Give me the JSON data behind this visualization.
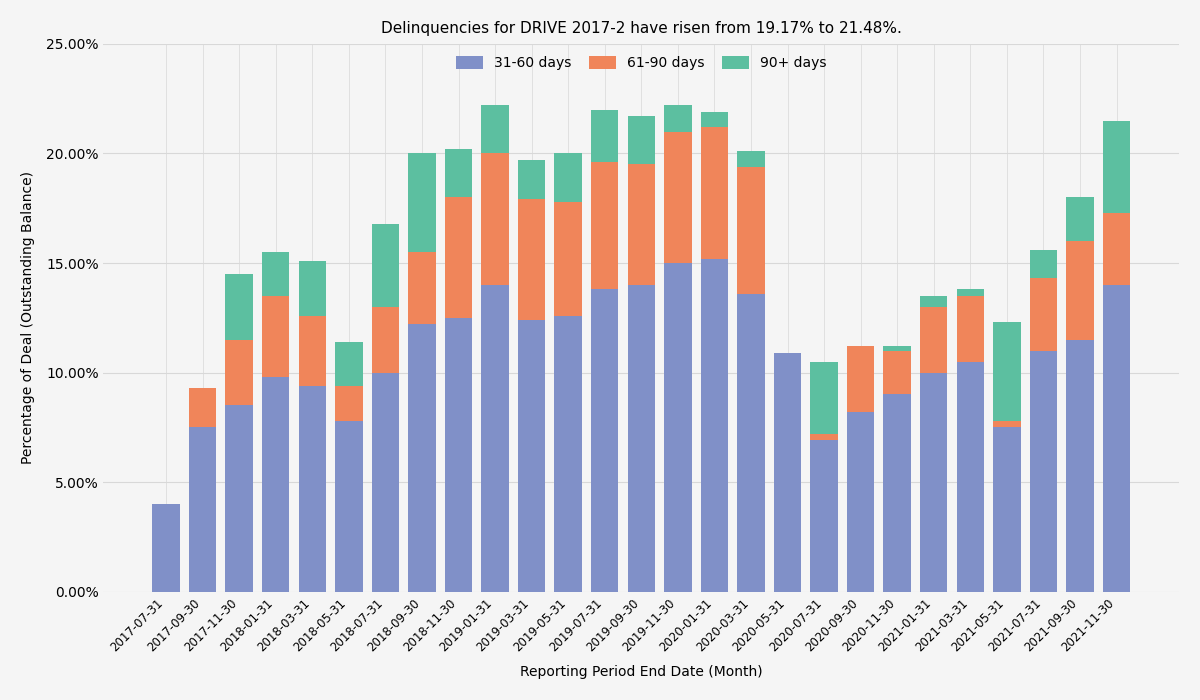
{
  "title": "Delinquencies for DRIVE 2017-2 have risen from 19.17% to 21.48%.",
  "xlabel": "Reporting Period End Date (Month)",
  "ylabel": "Percentage of Deal (Outstanding Balance)",
  "ylim": [
    0,
    0.25
  ],
  "yticks": [
    0.0,
    0.05,
    0.1,
    0.15,
    0.2,
    0.25
  ],
  "legend_labels": [
    "31-60 days",
    "61-90 days",
    "90+ days"
  ],
  "colors": [
    "#8090c8",
    "#f0855a",
    "#5cbfa0"
  ],
  "categories": [
    "2017-07-31",
    "2017-09-30",
    "2017-11-30",
    "2018-01-31",
    "2018-03-31",
    "2018-05-31",
    "2018-07-31",
    "2018-09-30",
    "2018-11-30",
    "2019-01-31",
    "2019-03-31",
    "2019-05-31",
    "2019-07-31",
    "2019-09-30",
    "2019-11-30",
    "2020-01-31",
    "2020-03-31",
    "2020-05-31",
    "2020-07-31",
    "2020-09-30",
    "2020-11-30",
    "2021-01-31",
    "2021-03-31",
    "2021-05-31",
    "2021-07-31",
    "2021-09-30",
    "2021-11-30"
  ],
  "series_31_60": [
    0.04,
    0.075,
    0.085,
    0.098,
    0.094,
    0.078,
    0.1,
    0.122,
    0.125,
    0.14,
    0.124,
    0.126,
    0.138,
    0.14,
    0.15,
    0.152,
    0.136,
    0.109,
    0.069,
    0.082,
    0.09,
    0.1,
    0.105,
    0.075,
    0.11,
    0.115,
    0.14
  ],
  "series_61_90": [
    0.0,
    0.018,
    0.03,
    0.037,
    0.032,
    0.016,
    0.03,
    0.033,
    0.055,
    0.06,
    0.055,
    0.052,
    0.058,
    0.055,
    0.06,
    0.06,
    0.058,
    0.0,
    0.003,
    0.03,
    0.02,
    0.03,
    0.03,
    0.003,
    0.033,
    0.045,
    0.033
  ],
  "series_90plus": [
    0.0,
    0.0,
    0.03,
    0.02,
    0.025,
    0.02,
    0.038,
    0.045,
    0.022,
    0.022,
    0.018,
    0.022,
    0.024,
    0.022,
    0.012,
    0.007,
    0.007,
    0.0,
    0.033,
    0.0,
    0.002,
    0.005,
    0.003,
    0.045,
    0.013,
    0.02,
    0.042
  ],
  "background_color": "#f5f5f5",
  "grid_color": "#d8d8d8"
}
